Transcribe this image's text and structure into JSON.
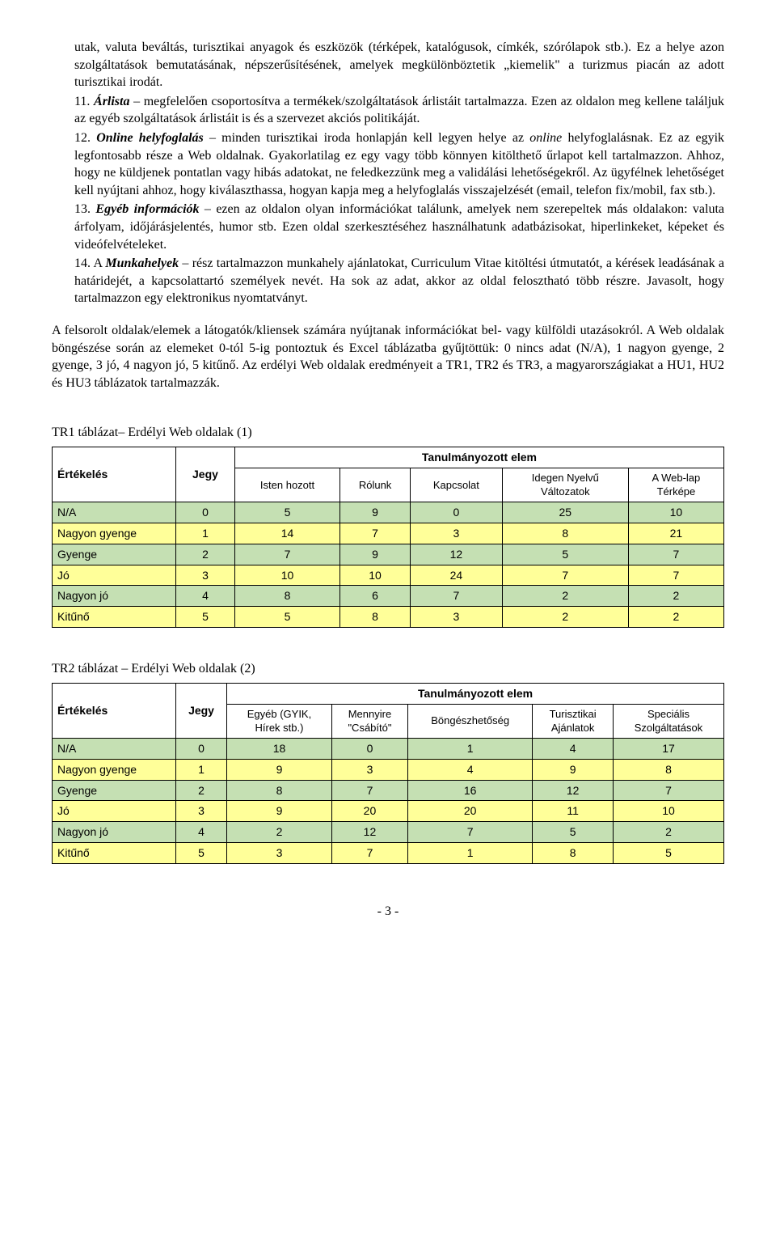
{
  "list": {
    "item_pre": {
      "text": "utak, valuta beváltás, turisztikai anyagok és eszközök (térképek, katalógusok, címkék, szórólapok stb.). Ez a helye azon szolgáltatások bemutatásának, népszerűsítésének, amelyek megkülönböztetik „kiemelik\" a turizmus piacán az adott turisztikai irodát."
    },
    "item11": {
      "num": "11. ",
      "lead": "Árlista",
      "text": " – megfelelően csoportosítva a termékek/szolgáltatások árlistáit tartalmazza. Ezen az oldalon meg kellene találjuk az egyéb szolgáltatások árlistáit is és a szervezet akciós politikáját."
    },
    "item12": {
      "num": "12. ",
      "lead": "Online helyfoglalás",
      "text1": " – minden turisztikai iroda honlapján kell legyen helye az ",
      "ital": "online",
      "text2": " helyfoglalásnak. Ez az egyik legfontosabb része a Web oldalnak. Gyakorlatilag ez egy vagy több könnyen kitölthető űrlapot kell tartalmazzon. Ahhoz, hogy ne küldjenek pontatlan vagy hibás adatokat, ne feledkezzünk meg a validálási lehetőségekről. Az ügyfélnek lehetőséget kell nyújtani ahhoz, hogy kiválaszthassa, hogyan kapja meg a helyfoglalás visszajelzését (email, telefon fix/mobil, fax stb.)."
    },
    "item13": {
      "num": "13. ",
      "lead": "Egyéb információk",
      "text": " – ezen az oldalon olyan információkat találunk, amelyek nem szerepeltek más oldalakon: valuta árfolyam, időjárásjelentés, humor stb. Ezen oldal szerkesztéséhez használhatunk adatbázisokat, hiperlinkeket, képeket és videófelvételeket."
    },
    "item14": {
      "num": "14. ",
      "lead_pre": "A ",
      "lead": "Munkahelyek",
      "text": " – rész tartalmazzon munkahely ajánlatokat, Curriculum Vitae kitöltési útmutatót, a kérések leadásának a határidejét, a kapcsolattartó személyek nevét. Ha sok az adat, akkor az oldal felosztható több részre. Javasolt, hogy tartalmazzon egy elektronikus nyomtatványt."
    }
  },
  "para": "A felsorolt oldalak/elemek a látogatók/kliensek számára nyújtanak információkat bel- vagy külföldi utazásokról. A Web oldalak böngészése során az elemeket 0-tól 5-ig pontoztuk és Excel táblázatba gyűjtöttük: 0 nincs adat (N/A), 1 nagyon gyenge, 2 gyenge, 3 jó, 4 nagyon jó, 5 kitűnő. Az erdélyi Web oldalak eredményeit a TR1, TR2 és TR3, a magyarországiakat a HU1, HU2 és HU3 táblázatok tartalmazzák.",
  "table1": {
    "title": "TR1 táblázat– Erdélyi Web oldalak (1)",
    "head": {
      "ertek": "Értékelés",
      "jegy": "Jegy",
      "group": "Tanulmányozott elem",
      "c1": "Isten hozott",
      "c2": "Rólunk",
      "c3": "Kapcsolat",
      "c4a": "Idegen Nyelvű",
      "c4b": "Változatok",
      "c5a": "A Web-lap",
      "c5b": "Térképe"
    },
    "rows": [
      {
        "label": "N/A",
        "jegy": "0",
        "v": [
          "5",
          "9",
          "0",
          "25",
          "10"
        ],
        "cls": "row-green"
      },
      {
        "label": "Nagyon gyenge",
        "jegy": "1",
        "v": [
          "14",
          "7",
          "3",
          "8",
          "21"
        ],
        "cls": "row-yellow"
      },
      {
        "label": "Gyenge",
        "jegy": "2",
        "v": [
          "7",
          "9",
          "12",
          "5",
          "7"
        ],
        "cls": "row-green"
      },
      {
        "label": "Jó",
        "jegy": "3",
        "v": [
          "10",
          "10",
          "24",
          "7",
          "7"
        ],
        "cls": "row-yellow"
      },
      {
        "label": "Nagyon jó",
        "jegy": "4",
        "v": [
          "8",
          "6",
          "7",
          "2",
          "2"
        ],
        "cls": "row-green"
      },
      {
        "label": "Kitűnő",
        "jegy": "5",
        "v": [
          "5",
          "8",
          "3",
          "2",
          "2"
        ],
        "cls": "row-yellow"
      }
    ]
  },
  "table2": {
    "title": "TR2 táblázat – Erdélyi Web oldalak (2)",
    "head": {
      "ertek": "Értékelés",
      "jegy": "Jegy",
      "group": "Tanulmányozott elem",
      "c1a": "Egyéb (GYIK,",
      "c1b": "Hírek stb.)",
      "c2a": "Mennyire",
      "c2b": "\"Csábító\"",
      "c3": "Böngészhetőség",
      "c4a": "Turisztikai",
      "c4b": "Ajánlatok",
      "c5a": "Speciális",
      "c5b": "Szolgáltatások"
    },
    "rows": [
      {
        "label": "N/A",
        "jegy": "0",
        "v": [
          "18",
          "0",
          "1",
          "4",
          "17"
        ],
        "cls": "row-green"
      },
      {
        "label": "Nagyon gyenge",
        "jegy": "1",
        "v": [
          "9",
          "3",
          "4",
          "9",
          "8"
        ],
        "cls": "row-yellow"
      },
      {
        "label": "Gyenge",
        "jegy": "2",
        "v": [
          "8",
          "7",
          "16",
          "12",
          "7"
        ],
        "cls": "row-green"
      },
      {
        "label": "Jó",
        "jegy": "3",
        "v": [
          "9",
          "20",
          "20",
          "11",
          "10"
        ],
        "cls": "row-yellow"
      },
      {
        "label": "Nagyon jó",
        "jegy": "4",
        "v": [
          "2",
          "12",
          "7",
          "5",
          "2"
        ],
        "cls": "row-green"
      },
      {
        "label": "Kitűnő",
        "jegy": "5",
        "v": [
          "3",
          "7",
          "1",
          "8",
          "5"
        ],
        "cls": "row-yellow"
      }
    ]
  },
  "page_num": "- 3 -",
  "colors": {
    "green": "#c5e0b3",
    "yellow": "#ffff99"
  }
}
